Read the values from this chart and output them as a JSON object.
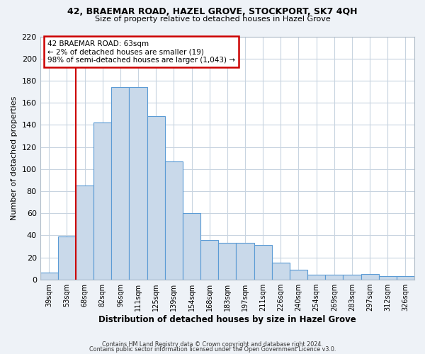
{
  "title": "42, BRAEMAR ROAD, HAZEL GROVE, STOCKPORT, SK7 4QH",
  "subtitle": "Size of property relative to detached houses in Hazel Grove",
  "xlabel": "Distribution of detached houses by size in Hazel Grove",
  "ylabel": "Number of detached properties",
  "categories": [
    "39sqm",
    "53sqm",
    "68sqm",
    "82sqm",
    "96sqm",
    "111sqm",
    "125sqm",
    "139sqm",
    "154sqm",
    "168sqm",
    "183sqm",
    "197sqm",
    "211sqm",
    "226sqm",
    "240sqm",
    "254sqm",
    "269sqm",
    "283sqm",
    "297sqm",
    "312sqm",
    "326sqm"
  ],
  "values": [
    6,
    39,
    85,
    142,
    174,
    174,
    148,
    107,
    60,
    36,
    33,
    33,
    31,
    15,
    9,
    4,
    4,
    4,
    5,
    3,
    3
  ],
  "bar_color": "#c9d9ea",
  "bar_edge_color": "#5b9bd5",
  "marker_label": "42 BRAEMAR ROAD: 63sqm",
  "annotation_line1": "← 2% of detached houses are smaller (19)",
  "annotation_line2": "98% of semi-detached houses are larger (1,043) →",
  "annotation_box_color": "#ffffff",
  "annotation_box_edge": "#cc0000",
  "marker_line_color": "#cc0000",
  "ylim": [
    0,
    220
  ],
  "yticks": [
    0,
    20,
    40,
    60,
    80,
    100,
    120,
    140,
    160,
    180,
    200,
    220
  ],
  "footer1": "Contains HM Land Registry data © Crown copyright and database right 2024.",
  "footer2": "Contains public sector information licensed under the Open Government Licence v3.0.",
  "background_color": "#eef2f7",
  "plot_background": "#ffffff",
  "grid_color": "#c8d4e0"
}
